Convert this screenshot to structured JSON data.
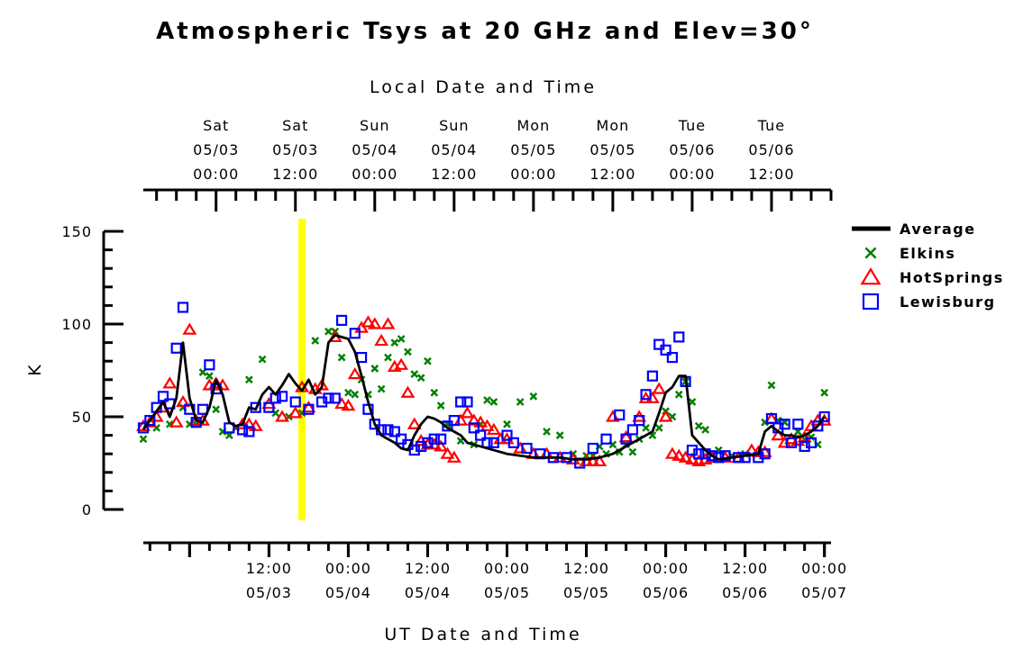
{
  "chart_data": {
    "type": "scatter",
    "title": "Atmospheric Tsys at 20 GHz and Elev=30°",
    "xlabel": "UT Date and Time",
    "x2label": "Local Date and Time",
    "ylabel": "K",
    "ylim": [
      0,
      150
    ],
    "yticks": [
      0,
      50,
      100,
      150
    ],
    "xlim": [
      "2003-05-02T17:00",
      "2003-05-07T01:00"
    ],
    "x_ticks_bottom": [
      {
        "time": "12:00",
        "date": "05/03"
      },
      {
        "time": "00:00",
        "date": "05/04"
      },
      {
        "time": "12:00",
        "date": "05/04"
      },
      {
        "time": "00:00",
        "date": "05/05"
      },
      {
        "time": "12:00",
        "date": "05/05"
      },
      {
        "time": "00:00",
        "date": "05/06"
      },
      {
        "time": "12:00",
        "date": "05/06"
      },
      {
        "time": "00:00",
        "date": "05/07"
      }
    ],
    "x_ticks_top": [
      {
        "day": "Sat",
        "date": "05/03",
        "time": "00:00"
      },
      {
        "day": "Sat",
        "date": "05/03",
        "time": "12:00"
      },
      {
        "day": "Sun",
        "date": "05/04",
        "time": "00:00"
      },
      {
        "day": "Sun",
        "date": "05/04",
        "time": "12:00"
      },
      {
        "day": "Mon",
        "date": "05/05",
        "time": "00:00"
      },
      {
        "day": "Mon",
        "date": "05/05",
        "time": "12:00"
      },
      {
        "day": "Tue",
        "date": "05/06",
        "time": "00:00"
      },
      {
        "day": "Tue",
        "date": "05/06",
        "time": "12:00"
      }
    ],
    "highlight_time": "2003-05-03T17:00",
    "highlight_color": "#ffff00",
    "legend_placement": "right",
    "grid": false,
    "series": [
      {
        "name": "Average",
        "marker": "line",
        "color": "#000000",
        "x": [
          "2003-05-02T17:00",
          "2003-05-02T18:00",
          "2003-05-02T19:00",
          "2003-05-02T20:00",
          "2003-05-02T21:00",
          "2003-05-02T22:00",
          "2003-05-02T23:00",
          "2003-05-03T00:00",
          "2003-05-03T01:00",
          "2003-05-03T02:00",
          "2003-05-03T03:00",
          "2003-05-03T04:00",
          "2003-05-03T05:00",
          "2003-05-03T06:00",
          "2003-05-03T07:00",
          "2003-05-03T08:00",
          "2003-05-03T09:00",
          "2003-05-03T10:00",
          "2003-05-03T11:00",
          "2003-05-03T12:00",
          "2003-05-03T13:00",
          "2003-05-03T14:00",
          "2003-05-03T15:00",
          "2003-05-03T16:00",
          "2003-05-03T17:00",
          "2003-05-03T18:00",
          "2003-05-03T19:00",
          "2003-05-03T20:00",
          "2003-05-03T21:00",
          "2003-05-03T22:00",
          "2003-05-04T00:00",
          "2003-05-04T01:00",
          "2003-05-04T02:00",
          "2003-05-04T03:00",
          "2003-05-04T04:00",
          "2003-05-04T05:00",
          "2003-05-04T06:00",
          "2003-05-04T07:00",
          "2003-05-04T08:00",
          "2003-05-04T09:00",
          "2003-05-04T10:00",
          "2003-05-04T11:00",
          "2003-05-04T12:00",
          "2003-05-04T13:00",
          "2003-05-04T14:00",
          "2003-05-04T15:00",
          "2003-05-04T17:00",
          "2003-05-04T18:00",
          "2003-05-04T20:00",
          "2003-05-04T22:00",
          "2003-05-05T00:00",
          "2003-05-05T02:00",
          "2003-05-05T04:00",
          "2003-05-05T06:00",
          "2003-05-05T08:00",
          "2003-05-05T10:00",
          "2003-05-05T12:00",
          "2003-05-05T14:00",
          "2003-05-05T16:00",
          "2003-05-05T18:00",
          "2003-05-05T20:00",
          "2003-05-05T22:00",
          "2003-05-05T23:00",
          "2003-05-06T00:00",
          "2003-05-06T01:00",
          "2003-05-06T02:00",
          "2003-05-06T03:00",
          "2003-05-06T04:00",
          "2003-05-06T05:00",
          "2003-05-06T06:00",
          "2003-05-06T07:00",
          "2003-05-06T08:00",
          "2003-05-06T10:00",
          "2003-05-06T12:00",
          "2003-05-06T14:00",
          "2003-05-06T15:00",
          "2003-05-06T16:00",
          "2003-05-06T17:00",
          "2003-05-06T18:00",
          "2003-05-06T19:00",
          "2003-05-06T20:00",
          "2003-05-06T21:00",
          "2003-05-06T22:00",
          "2003-05-06T23:00",
          "2003-05-07T00:00"
        ],
        "values": [
          43,
          48,
          53,
          58,
          50,
          60,
          90,
          60,
          48,
          47,
          55,
          70,
          62,
          47,
          45,
          46,
          55,
          54,
          62,
          66,
          62,
          67,
          73,
          68,
          64,
          70,
          62,
          66,
          90,
          94,
          92,
          85,
          72,
          58,
          46,
          40,
          38,
          36,
          33,
          32,
          40,
          46,
          50,
          49,
          47,
          44,
          40,
          36,
          34,
          32,
          30,
          29,
          28,
          28,
          28,
          27,
          27,
          28,
          30,
          34,
          38,
          42,
          52,
          63,
          66,
          72,
          72,
          40,
          36,
          32,
          29,
          27,
          28,
          29,
          30,
          42,
          45,
          42,
          40,
          40,
          39,
          40,
          42,
          45,
          50
        ]
      },
      {
        "name": "Elkins",
        "marker": "x",
        "color": "#008000",
        "x": [
          "2003-05-02T17:00",
          "2003-05-02T19:00",
          "2003-05-02T21:00",
          "2003-05-02T23:00",
          "2003-05-03T00:00",
          "2003-05-03T01:00",
          "2003-05-03T02:00",
          "2003-05-03T03:00",
          "2003-05-03T04:00",
          "2003-05-03T05:00",
          "2003-05-03T06:00",
          "2003-05-03T07:00",
          "2003-05-03T09:00",
          "2003-05-03T11:00",
          "2003-05-03T13:00",
          "2003-05-03T15:00",
          "2003-05-03T17:00",
          "2003-05-03T19:00",
          "2003-05-03T21:00",
          "2003-05-03T22:00",
          "2003-05-03T23:00",
          "2003-05-04T00:00",
          "2003-05-04T01:00",
          "2003-05-04T02:00",
          "2003-05-04T03:00",
          "2003-05-04T04:00",
          "2003-05-04T05:00",
          "2003-05-04T06:00",
          "2003-05-04T07:00",
          "2003-05-04T08:00",
          "2003-05-04T09:00",
          "2003-05-04T10:00",
          "2003-05-04T11:00",
          "2003-05-04T12:00",
          "2003-05-04T13:00",
          "2003-05-04T14:00",
          "2003-05-04T15:00",
          "2003-05-04T17:00",
          "2003-05-04T19:00",
          "2003-05-04T20:00",
          "2003-05-04T21:00",
          "2003-05-04T22:00",
          "2003-05-05T00:00",
          "2003-05-05T02:00",
          "2003-05-05T04:00",
          "2003-05-05T06:00",
          "2003-05-05T08:00",
          "2003-05-05T10:00",
          "2003-05-05T12:00",
          "2003-05-05T13:00",
          "2003-05-05T14:00",
          "2003-05-05T15:00",
          "2003-05-05T16:00",
          "2003-05-05T17:00",
          "2003-05-05T18:00",
          "2003-05-05T19:00",
          "2003-05-05T20:00",
          "2003-05-05T21:00",
          "2003-05-05T22:00",
          "2003-05-05T23:00",
          "2003-05-06T00:00",
          "2003-05-06T01:00",
          "2003-05-06T02:00",
          "2003-05-06T03:00",
          "2003-05-06T04:00",
          "2003-05-06T05:00",
          "2003-05-06T06:00",
          "2003-05-06T08:00",
          "2003-05-06T10:00",
          "2003-05-06T12:00",
          "2003-05-06T14:00",
          "2003-05-06T15:00",
          "2003-05-06T16:00",
          "2003-05-06T17:00",
          "2003-05-06T18:00",
          "2003-05-06T20:00",
          "2003-05-06T21:00",
          "2003-05-06T22:00",
          "2003-05-06T23:00",
          "2003-05-07T00:00"
        ],
        "values": [
          38,
          44,
          46,
          55,
          46,
          46,
          74,
          72,
          54,
          42,
          40,
          44,
          70,
          81,
          52,
          50,
          52,
          91,
          96,
          96,
          82,
          63,
          62,
          70,
          62,
          76,
          65,
          82,
          90,
          92,
          85,
          73,
          71,
          80,
          63,
          56,
          46,
          37,
          35,
          46,
          59,
          58,
          46,
          58,
          61,
          42,
          40,
          30,
          29,
          29,
          34,
          30,
          35,
          31,
          35,
          31,
          38,
          44,
          40,
          44,
          53,
          50,
          62,
          69,
          58,
          45,
          43,
          32,
          29,
          30,
          30,
          47,
          67,
          48,
          47,
          42,
          38,
          39,
          35,
          63
        ]
      },
      {
        "name": "HotSprings",
        "marker": "triangle",
        "color": "#ff0000",
        "x": [
          "2003-05-02T17:00",
          "2003-05-02T18:00",
          "2003-05-02T19:00",
          "2003-05-02T20:00",
          "2003-05-02T21:00",
          "2003-05-02T22:00",
          "2003-05-02T23:00",
          "2003-05-03T00:00",
          "2003-05-03T01:00",
          "2003-05-03T02:00",
          "2003-05-03T03:00",
          "2003-05-03T04:00",
          "2003-05-03T05:00",
          "2003-05-03T08:00",
          "2003-05-03T09:00",
          "2003-05-03T10:00",
          "2003-05-03T12:00",
          "2003-05-03T14:00",
          "2003-05-03T16:00",
          "2003-05-03T17:00",
          "2003-05-03T18:00",
          "2003-05-03T19:00",
          "2003-05-03T20:00",
          "2003-05-03T22:00",
          "2003-05-03T23:00",
          "2003-05-04T00:00",
          "2003-05-04T01:00",
          "2003-05-04T02:00",
          "2003-05-04T03:00",
          "2003-05-04T04:00",
          "2003-05-04T05:00",
          "2003-05-04T06:00",
          "2003-05-04T07:00",
          "2003-05-04T08:00",
          "2003-05-04T09:00",
          "2003-05-04T10:00",
          "2003-05-04T11:00",
          "2003-05-04T12:00",
          "2003-05-04T13:00",
          "2003-05-04T14:00",
          "2003-05-04T15:00",
          "2003-05-04T16:00",
          "2003-05-04T17:00",
          "2003-05-04T18:00",
          "2003-05-04T19:00",
          "2003-05-04T20:00",
          "2003-05-04T21:00",
          "2003-05-04T22:00",
          "2003-05-04T23:00",
          "2003-05-05T00:00",
          "2003-05-05T02:00",
          "2003-05-05T04:00",
          "2003-05-05T06:00",
          "2003-05-05T08:00",
          "2003-05-05T10:00",
          "2003-05-05T12:00",
          "2003-05-05T13:00",
          "2003-05-05T14:00",
          "2003-05-05T16:00",
          "2003-05-05T18:00",
          "2003-05-05T20:00",
          "2003-05-05T21:00",
          "2003-05-05T22:00",
          "2003-05-05T23:00",
          "2003-05-06T00:00",
          "2003-05-06T01:00",
          "2003-05-06T02:00",
          "2003-05-06T03:00",
          "2003-05-06T04:00",
          "2003-05-06T05:00",
          "2003-05-06T06:00",
          "2003-05-06T07:00",
          "2003-05-06T09:00",
          "2003-05-06T11:00",
          "2003-05-06T13:00",
          "2003-05-06T14:00",
          "2003-05-06T15:00",
          "2003-05-06T16:00",
          "2003-05-06T17:00",
          "2003-05-06T18:00",
          "2003-05-06T19:00",
          "2003-05-06T20:00",
          "2003-05-06T21:00",
          "2003-05-06T22:00",
          "2003-05-06T23:00",
          "2003-05-07T00:00"
        ],
        "values": [
          45,
          47,
          50,
          55,
          68,
          47,
          58,
          97,
          48,
          48,
          67,
          68,
          67,
          46,
          46,
          45,
          57,
          50,
          52,
          66,
          55,
          65,
          67,
          93,
          57,
          56,
          73,
          98,
          101,
          100,
          91,
          100,
          77,
          78,
          63,
          46,
          37,
          35,
          35,
          34,
          30,
          28,
          48,
          52,
          48,
          47,
          45,
          43,
          38,
          38,
          33,
          30,
          30,
          28,
          27,
          26,
          26,
          26,
          50,
          39,
          50,
          60,
          60,
          65,
          50,
          30,
          29,
          28,
          27,
          26,
          27,
          28,
          28,
          28,
          32,
          31,
          31,
          49,
          40,
          36,
          38,
          37,
          39,
          45,
          48,
          48
        ]
      },
      {
        "name": "Lewisburg",
        "marker": "square",
        "color": "#0000ff",
        "x": [
          "2003-05-02T17:00",
          "2003-05-02T18:00",
          "2003-05-02T19:00",
          "2003-05-02T20:00",
          "2003-05-02T21:00",
          "2003-05-02T22:00",
          "2003-05-02T23:00",
          "2003-05-03T00:00",
          "2003-05-03T01:00",
          "2003-05-03T02:00",
          "2003-05-03T03:00",
          "2003-05-03T04:00",
          "2003-05-03T06:00",
          "2003-05-03T08:00",
          "2003-05-03T09:00",
          "2003-05-03T10:00",
          "2003-05-03T12:00",
          "2003-05-03T13:00",
          "2003-05-03T14:00",
          "2003-05-03T16:00",
          "2003-05-03T18:00",
          "2003-05-03T20:00",
          "2003-05-03T21:00",
          "2003-05-03T22:00",
          "2003-05-03T23:00",
          "2003-05-04T01:00",
          "2003-05-04T02:00",
          "2003-05-04T03:00",
          "2003-05-04T04:00",
          "2003-05-04T05:00",
          "2003-05-04T06:00",
          "2003-05-04T07:00",
          "2003-05-04T08:00",
          "2003-05-04T09:00",
          "2003-05-04T10:00",
          "2003-05-04T11:00",
          "2003-05-04T12:00",
          "2003-05-04T13:00",
          "2003-05-04T14:00",
          "2003-05-04T15:00",
          "2003-05-04T16:00",
          "2003-05-04T17:00",
          "2003-05-04T18:00",
          "2003-05-04T19:00",
          "2003-05-04T20:00",
          "2003-05-04T21:00",
          "2003-05-04T22:00",
          "2003-05-05T00:00",
          "2003-05-05T01:00",
          "2003-05-05T03:00",
          "2003-05-05T05:00",
          "2003-05-05T07:00",
          "2003-05-05T09:00",
          "2003-05-05T11:00",
          "2003-05-05T13:00",
          "2003-05-05T15:00",
          "2003-05-05T17:00",
          "2003-05-05T18:00",
          "2003-05-05T19:00",
          "2003-05-05T20:00",
          "2003-05-05T21:00",
          "2003-05-05T22:00",
          "2003-05-05T23:00",
          "2003-05-06T00:00",
          "2003-05-06T01:00",
          "2003-05-06T02:00",
          "2003-05-06T03:00",
          "2003-05-06T04:00",
          "2003-05-06T05:00",
          "2003-05-06T06:00",
          "2003-05-06T07:00",
          "2003-05-06T08:00",
          "2003-05-06T09:00",
          "2003-05-06T11:00",
          "2003-05-06T12:00",
          "2003-05-06T14:00",
          "2003-05-06T15:00",
          "2003-05-06T16:00",
          "2003-05-06T17:00",
          "2003-05-06T18:00",
          "2003-05-06T19:00",
          "2003-05-06T20:00",
          "2003-05-06T21:00",
          "2003-05-06T22:00",
          "2003-05-06T23:00",
          "2003-05-07T00:00"
        ],
        "values": [
          44,
          48,
          55,
          61,
          57,
          87,
          109,
          54,
          47,
          54,
          78,
          65,
          44,
          43,
          42,
          55,
          55,
          60,
          61,
          58,
          54,
          58,
          60,
          60,
          102,
          95,
          82,
          54,
          46,
          43,
          43,
          42,
          38,
          35,
          32,
          34,
          36,
          38,
          38,
          45,
          48,
          58,
          58,
          44,
          40,
          36,
          36,
          40,
          36,
          33,
          30,
          28,
          28,
          25,
          33,
          38,
          51,
          38,
          43,
          48,
          62,
          72,
          89,
          86,
          82,
          93,
          69,
          32,
          30,
          30,
          29,
          28,
          29,
          28,
          28,
          28,
          30,
          49,
          44,
          46,
          36,
          46,
          34,
          36,
          45,
          50
        ]
      }
    ]
  }
}
